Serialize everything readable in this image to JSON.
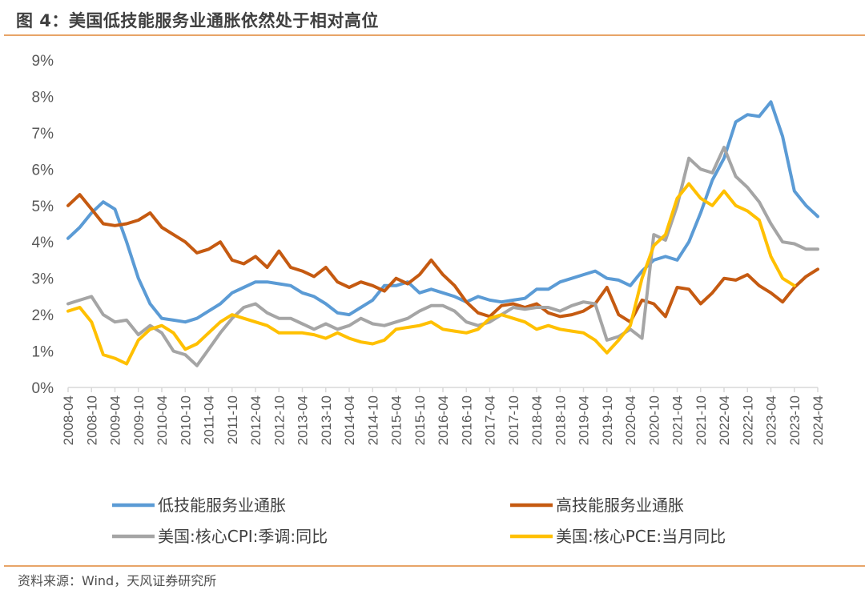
{
  "header": {
    "title": "图 4：美国低技能服务业通胀依然处于相对高位"
  },
  "footer": {
    "source": "资料来源：Wind，天风证券研究所"
  },
  "colors": {
    "accent_rule": "#e8a468"
  },
  "chart_data": {
    "type": "line",
    "title": "图 4：美国低技能服务业通胀依然处于相对高位",
    "xlabel": "",
    "ylabel": "",
    "ylim": [
      0,
      9
    ],
    "yticks": [
      "0%",
      "1%",
      "2%",
      "3%",
      "4%",
      "5%",
      "6%",
      "7%",
      "8%",
      "9%"
    ],
    "xticks": [
      "2008-04",
      "2008-10",
      "2009-04",
      "2009-10",
      "2010-04",
      "2010-10",
      "2011-04",
      "2011-10",
      "2012-04",
      "2012-10",
      "2013-04",
      "2013-10",
      "2014-04",
      "2014-10",
      "2015-04",
      "2015-10",
      "2016-04",
      "2016-10",
      "2017-04",
      "2017-10",
      "2018-04",
      "2018-10",
      "2019-04",
      "2019-10",
      "2020-04",
      "2020-10",
      "2021-04",
      "2021-10",
      "2022-04",
      "2022-10",
      "2023-04",
      "2023-10",
      "2024-04"
    ],
    "x_start": "2008-04",
    "x_step_months": 3,
    "grid": false,
    "legend_position": "bottom",
    "series": [
      {
        "name": "低技能服务业通胀",
        "color": "#5b9bd5",
        "values": [
          4.1,
          4.4,
          4.8,
          5.1,
          4.9,
          4.0,
          3.0,
          2.3,
          1.9,
          1.85,
          1.8,
          1.9,
          2.1,
          2.3,
          2.6,
          2.75,
          2.9,
          2.9,
          2.85,
          2.8,
          2.6,
          2.5,
          2.3,
          2.05,
          2.0,
          2.2,
          2.4,
          2.8,
          2.8,
          2.9,
          2.6,
          2.7,
          2.6,
          2.5,
          2.35,
          2.5,
          2.4,
          2.35,
          2.4,
          2.45,
          2.7,
          2.7,
          2.9,
          3.0,
          3.1,
          3.2,
          3.0,
          2.95,
          2.8,
          3.2,
          3.5,
          3.6,
          3.5,
          4.0,
          4.8,
          5.7,
          6.3,
          7.3,
          7.5,
          7.45,
          7.85,
          6.9,
          5.4,
          5.0,
          4.7
        ]
      },
      {
        "name": "高技能服务业通胀",
        "color": "#c55a11",
        "values": [
          5.0,
          5.3,
          4.9,
          4.5,
          4.45,
          4.5,
          4.6,
          4.8,
          4.4,
          4.2,
          4.0,
          3.7,
          3.8,
          4.0,
          3.5,
          3.4,
          3.6,
          3.3,
          3.75,
          3.3,
          3.2,
          3.05,
          3.3,
          2.9,
          2.75,
          2.9,
          2.8,
          2.65,
          3.0,
          2.85,
          3.1,
          3.5,
          3.1,
          2.8,
          2.35,
          2.05,
          1.95,
          2.25,
          2.3,
          2.2,
          2.3,
          2.05,
          1.95,
          2.0,
          2.1,
          2.3,
          2.75,
          2.0,
          1.8,
          2.4,
          2.3,
          1.95,
          2.75,
          2.7,
          2.3,
          2.6,
          3.0,
          2.95,
          3.1,
          2.8,
          2.6,
          2.35,
          2.75,
          3.05,
          3.25
        ]
      },
      {
        "name": "美国:核心CPI:季调:同比",
        "color": "#a5a5a5",
        "values": [
          2.3,
          2.4,
          2.5,
          2.0,
          1.8,
          1.85,
          1.45,
          1.7,
          1.5,
          1.0,
          0.9,
          0.6,
          1.05,
          1.5,
          1.9,
          2.2,
          2.3,
          2.05,
          1.9,
          1.9,
          1.75,
          1.6,
          1.75,
          1.6,
          1.7,
          1.9,
          1.75,
          1.7,
          1.8,
          1.9,
          2.1,
          2.25,
          2.25,
          2.1,
          1.8,
          1.7,
          1.8,
          2.0,
          2.2,
          2.15,
          2.2,
          2.2,
          2.1,
          2.25,
          2.35,
          2.3,
          1.3,
          1.4,
          1.6,
          1.35,
          4.2,
          4.05,
          5.0,
          6.3,
          6.0,
          5.9,
          6.6,
          5.8,
          5.5,
          5.1,
          4.5,
          4.0,
          3.95,
          3.8,
          3.8
        ]
      },
      {
        "name": "美国:核心PCE:当月同比",
        "color": "#ffc000",
        "values": [
          2.1,
          2.2,
          1.8,
          0.9,
          0.8,
          0.65,
          1.3,
          1.6,
          1.7,
          1.5,
          1.05,
          1.2,
          1.5,
          1.8,
          2.0,
          1.9,
          1.8,
          1.7,
          1.5,
          1.5,
          1.5,
          1.45,
          1.35,
          1.5,
          1.35,
          1.25,
          1.2,
          1.3,
          1.6,
          1.65,
          1.7,
          1.8,
          1.6,
          1.55,
          1.5,
          1.6,
          1.9,
          2.0,
          1.9,
          1.8,
          1.6,
          1.7,
          1.6,
          1.55,
          1.5,
          1.3,
          0.95,
          1.3,
          1.7,
          3.0,
          3.9,
          4.2,
          5.2,
          5.6,
          5.2,
          5.0,
          5.4,
          5.0,
          4.85,
          4.6,
          3.6,
          3.0,
          2.8,
          null,
          null
        ]
      }
    ]
  }
}
